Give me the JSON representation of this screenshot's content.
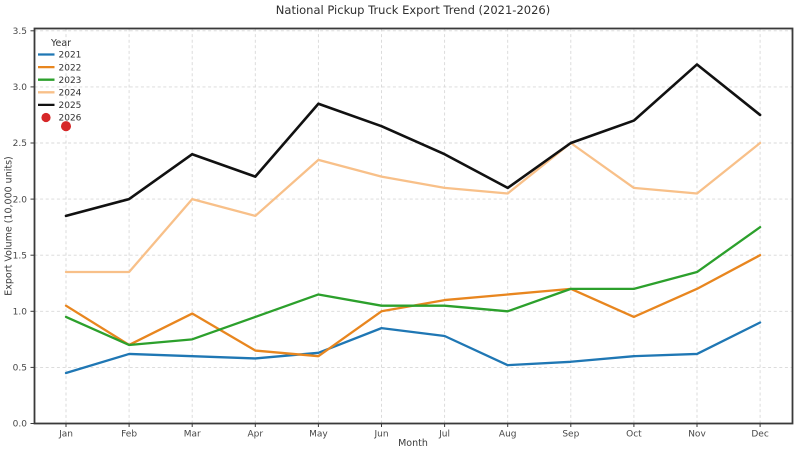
{
  "chart_data": {
    "type": "line",
    "title": "National Pickup Truck Export Trend (2021-2026)",
    "xlabel": "Month",
    "ylabel": "Export Volume (10,000 units)",
    "categories": [
      "Jan",
      "Feb",
      "Mar",
      "Apr",
      "May",
      "Jun",
      "Jul",
      "Aug",
      "Sep",
      "Oct",
      "Nov",
      "Dec"
    ],
    "ylim": [
      0,
      3.5
    ],
    "yticks": [
      0.0,
      0.5,
      1.0,
      1.5,
      2.0,
      2.5,
      3.0,
      3.5
    ],
    "grid": "dashed-lightgray",
    "background": "#ffffff",
    "legend": {
      "title": "Year",
      "position": "upper-left",
      "frame": false
    },
    "series": [
      {
        "name": "2021",
        "color": "#1f77b4",
        "style": "line",
        "values": [
          0.45,
          0.62,
          0.6,
          0.58,
          0.63,
          0.85,
          0.78,
          0.52,
          0.55,
          0.6,
          0.62,
          0.9
        ]
      },
      {
        "name": "2022",
        "color": "#e8861f",
        "style": "line",
        "values": [
          1.05,
          0.7,
          0.98,
          0.65,
          0.6,
          1.0,
          1.1,
          1.15,
          1.2,
          0.95,
          1.2,
          1.5
        ]
      },
      {
        "name": "2023",
        "color": "#2ca02c",
        "style": "line",
        "values": [
          0.95,
          0.7,
          0.75,
          0.95,
          1.15,
          1.05,
          1.05,
          1.0,
          1.2,
          1.2,
          1.35,
          1.75
        ]
      },
      {
        "name": "2024",
        "color": "#f8c089",
        "style": "line",
        "values": [
          1.35,
          1.35,
          2.0,
          1.85,
          2.35,
          2.2,
          2.1,
          2.05,
          2.5,
          2.1,
          2.05,
          2.5
        ]
      },
      {
        "name": "2025",
        "color": "#111111",
        "style": "line",
        "values": [
          1.85,
          2.0,
          2.4,
          2.2,
          2.85,
          2.65,
          2.4,
          2.1,
          2.5,
          2.7,
          3.2,
          2.75
        ]
      },
      {
        "name": "2026",
        "color": "#d62728",
        "style": "point",
        "marker": "filled-circle",
        "values": [
          2.65,
          null,
          null,
          null,
          null,
          null,
          null,
          null,
          null,
          null,
          null,
          null
        ]
      }
    ]
  }
}
